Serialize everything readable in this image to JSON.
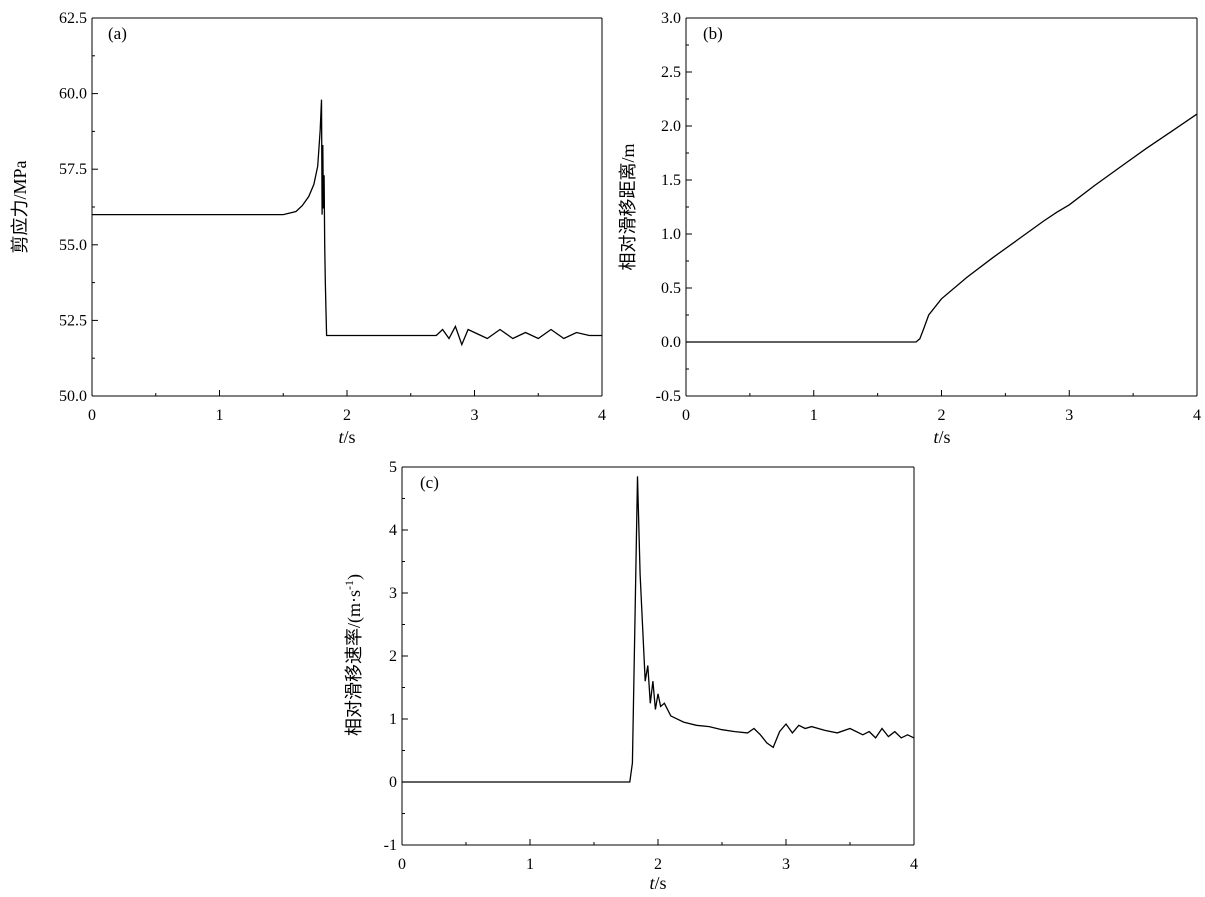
{
  "chart_data": [
    {
      "id": "a",
      "type": "line",
      "panel_label": "(a)",
      "xlabel": "t/s",
      "ylabel": "剪应力/MPa",
      "xlim": [
        0,
        4
      ],
      "ylim": [
        50.0,
        62.5
      ],
      "xticks": [
        0,
        1,
        2,
        3,
        4
      ],
      "xtick_labels": [
        "0",
        "1",
        "2",
        "3",
        "4"
      ],
      "yticks": [
        50.0,
        52.5,
        55.0,
        57.5,
        60.0,
        62.5
      ],
      "ytick_labels": [
        "50.0",
        "52.5",
        "55.0",
        "57.5",
        "60.0",
        "62.5"
      ],
      "series": [
        {
          "x": [
            0,
            1.0,
            1.5,
            1.6,
            1.65,
            1.7,
            1.74,
            1.77,
            1.79,
            1.8,
            1.805,
            1.81,
            1.815,
            1.82,
            1.825,
            1.83,
            1.835,
            1.84,
            1.86,
            2.0,
            2.4,
            2.7,
            2.75,
            2.8,
            2.85,
            2.9,
            2.95,
            3.0,
            3.1,
            3.2,
            3.3,
            3.4,
            3.5,
            3.6,
            3.7,
            3.8,
            3.9,
            4.0
          ],
          "y": [
            56.0,
            56.0,
            56.0,
            56.1,
            56.3,
            56.6,
            57.0,
            57.6,
            58.8,
            59.8,
            56.0,
            58.3,
            56.2,
            57.3,
            55.0,
            53.8,
            52.8,
            52.0,
            52.0,
            52.0,
            52.0,
            52.0,
            52.2,
            51.9,
            52.3,
            51.7,
            52.2,
            52.1,
            51.9,
            52.2,
            51.9,
            52.1,
            51.9,
            52.2,
            51.9,
            52.1,
            52.0,
            52.0
          ]
        }
      ]
    },
    {
      "id": "b",
      "type": "line",
      "panel_label": "(b)",
      "xlabel": "t/s",
      "ylabel": "相对滑移距离/m",
      "xlim": [
        0,
        4
      ],
      "ylim": [
        -0.5,
        3.0
      ],
      "xticks": [
        0,
        1,
        2,
        3,
        4
      ],
      "xtick_labels": [
        "0",
        "1",
        "2",
        "3",
        "4"
      ],
      "yticks": [
        -0.5,
        0.0,
        0.5,
        1.0,
        1.5,
        2.0,
        2.5,
        3.0
      ],
      "ytick_labels": [
        "-0.5",
        "0.0",
        "0.5",
        "1.0",
        "1.5",
        "2.0",
        "2.5",
        "3.0"
      ],
      "series": [
        {
          "x": [
            0,
            1.0,
            1.8,
            1.83,
            1.86,
            1.9,
            2.0,
            2.2,
            2.4,
            2.6,
            2.8,
            2.9,
            3.0,
            3.2,
            3.4,
            3.6,
            3.8,
            4.0
          ],
          "y": [
            0.0,
            0.0,
            0.0,
            0.03,
            0.12,
            0.25,
            0.4,
            0.6,
            0.78,
            0.95,
            1.12,
            1.2,
            1.27,
            1.45,
            1.62,
            1.79,
            1.95,
            2.11
          ]
        }
      ]
    },
    {
      "id": "c",
      "type": "line",
      "panel_label": "(c)",
      "xlabel": "t/s",
      "ylabel": "相对滑移速率/(m·s-1)",
      "xlim": [
        0,
        4
      ],
      "ylim": [
        -1,
        5
      ],
      "xticks": [
        0,
        1,
        2,
        3,
        4
      ],
      "xtick_labels": [
        "0",
        "1",
        "2",
        "3",
        "4"
      ],
      "yticks": [
        -1,
        0,
        1,
        2,
        3,
        4,
        5
      ],
      "ytick_labels": [
        "-1",
        "0",
        "1",
        "2",
        "3",
        "4",
        "5"
      ],
      "series": [
        {
          "x": [
            0,
            1.0,
            1.78,
            1.8,
            1.82,
            1.84,
            1.86,
            1.9,
            1.92,
            1.94,
            1.96,
            1.98,
            2.0,
            2.02,
            2.05,
            2.1,
            2.2,
            2.3,
            2.4,
            2.5,
            2.6,
            2.7,
            2.75,
            2.8,
            2.85,
            2.9,
            2.95,
            3.0,
            3.05,
            3.1,
            3.15,
            3.2,
            3.3,
            3.4,
            3.5,
            3.6,
            3.65,
            3.7,
            3.75,
            3.8,
            3.85,
            3.9,
            3.95,
            4.0
          ],
          "y": [
            0.0,
            0.0,
            0.0,
            0.3,
            2.6,
            4.85,
            3.3,
            1.6,
            1.85,
            1.25,
            1.6,
            1.15,
            1.4,
            1.2,
            1.25,
            1.05,
            0.95,
            0.9,
            0.88,
            0.83,
            0.8,
            0.78,
            0.85,
            0.75,
            0.62,
            0.55,
            0.8,
            0.92,
            0.78,
            0.9,
            0.85,
            0.88,
            0.82,
            0.78,
            0.85,
            0.75,
            0.8,
            0.7,
            0.85,
            0.72,
            0.8,
            0.7,
            0.75,
            0.7
          ]
        }
      ]
    }
  ]
}
